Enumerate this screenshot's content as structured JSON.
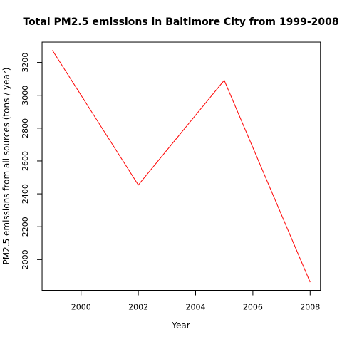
{
  "chart_data": {
    "type": "line",
    "title": "Total PM2.5 emissions in Baltimore City from 1999-2008",
    "xlabel": "Year",
    "ylabel": "PM2.5 emissions from all sources (tons / year)",
    "x": [
      1999,
      2002,
      2005,
      2008
    ],
    "series": [
      {
        "values": [
          3274.18,
          2453.92,
          3091.35,
          1862.28
        ],
        "color": "#ff0000"
      }
    ],
    "xlim": [
      1998.64,
      2008.36
    ],
    "ylim": [
      1812.8,
      3323.7
    ],
    "xticks": [
      2000,
      2002,
      2004,
      2006,
      2008
    ],
    "yticks": [
      2000,
      2200,
      2400,
      2600,
      2800,
      3000,
      3200
    ],
    "grid": false,
    "legend": "none"
  }
}
